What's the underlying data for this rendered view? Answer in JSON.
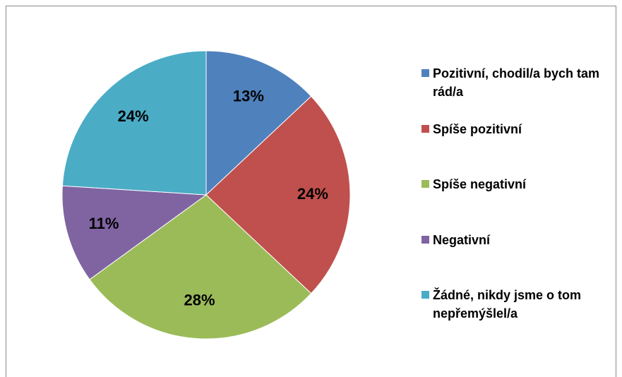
{
  "chart_data": {
    "type": "pie",
    "categories": [
      "Pozitivní, chodil/a bych tam rád/a",
      "Spíše pozitivní",
      "Spíše negativní",
      "Negativní",
      "Žádné, nikdy jsme o tom nepřemýšlel/a"
    ],
    "values": [
      13,
      24,
      28,
      11,
      24
    ],
    "value_labels": [
      "13%",
      "24%",
      "28%",
      "11%",
      "24%"
    ],
    "colors": [
      "#4f81bd",
      "#c0504d",
      "#9bbb59",
      "#8064a2",
      "#4bacc6"
    ],
    "legend": "right"
  }
}
